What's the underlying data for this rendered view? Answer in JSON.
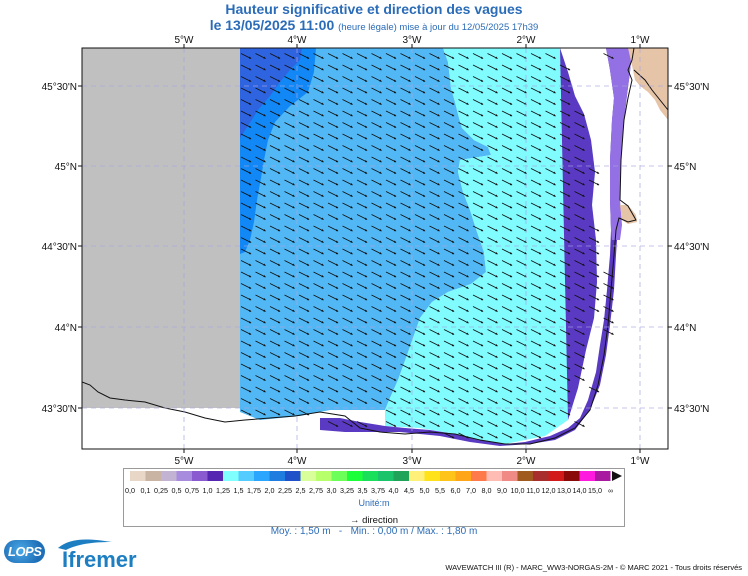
{
  "header": {
    "title": "Hauteur significative et direction des vagues",
    "date_main": "le 13/05/2025 11:00",
    "date_sub": "(heure légale) mise à jour du 12/05/2025 17h39"
  },
  "map": {
    "lon_labels": [
      "5°W",
      "4°W",
      "3°W",
      "2°W",
      "1°W"
    ],
    "lat_labels": [
      "45°30'N",
      "45°N",
      "44°30'N",
      "44°N",
      "43°30'N"
    ],
    "wave_direction": "southeast",
    "colors": {
      "land": "#c0c0c0",
      "coast_land": "#e6c4a8",
      "band_1_0": "#2f64e0",
      "band_1_25": "#1288f6",
      "band_1_5": "#52b8f5",
      "band_1_75": "#80fcff",
      "band_0_75": "#5a3ac2",
      "band_0_5": "#9370e4"
    }
  },
  "legend": {
    "ticks": [
      "0,0",
      "0,1",
      "0,25",
      "0,5",
      "0,75",
      "1,0",
      "1,25",
      "1,5",
      "1,75",
      "2,0",
      "2,25",
      "2,5",
      "2,75",
      "3,0",
      "3,25",
      "3,5",
      "3,75",
      "4,0",
      "4,5",
      "5,0",
      "5,5",
      "6,0",
      "7,0",
      "8,0",
      "9,0",
      "10,0",
      "11,0",
      "12,0",
      "13,0",
      "14,0",
      "15,0",
      "∞"
    ],
    "colors": [
      "#e8d6c6",
      "#c9b3a3",
      "#c3b3d3",
      "#a78bdc",
      "#8a5ad0",
      "#5426b2",
      "#80ffff",
      "#55ccff",
      "#2ba6ff",
      "#1f7de0",
      "#1f52c8",
      "#d8ff9a",
      "#b8ff6c",
      "#6cff5a",
      "#1aff3a",
      "#1adf5a",
      "#1ac46a",
      "#1fa35a",
      "#fff07a",
      "#ffe21a",
      "#ffc41a",
      "#ffa51a",
      "#ff7a4a",
      "#ffbcb4",
      "#f08a84",
      "#a05a1f",
      "#a82e2e",
      "#d21a1a",
      "#8a0a0a",
      "#ff1ae0",
      "#a81aa0"
    ],
    "unit": "Unité:m",
    "direction_label": "direction"
  },
  "stats": {
    "moy": "Moy. : 1,50 m",
    "sep": "-",
    "minmax": "Min. : 0,00 m / Max. : 1,80 m"
  },
  "footer": {
    "credit": "WAVEWATCH III (R) - MARC_WW3-NORGAS-2M - © MARC 2021 - Tous droits réservés",
    "logo_lops": "LOPS",
    "logo_ifremer": "Ifremer"
  }
}
